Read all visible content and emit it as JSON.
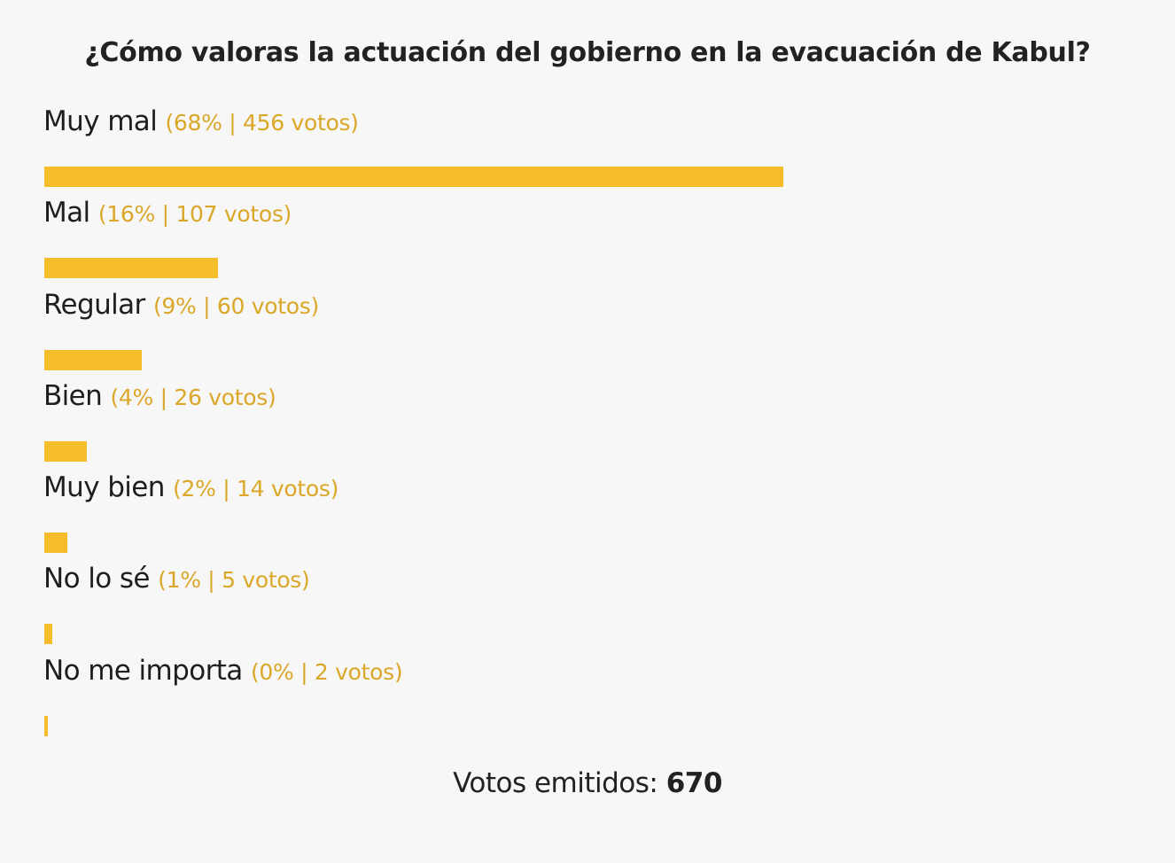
{
  "poll": {
    "title": "¿Cómo valoras la actuación del gobierno en la evacuación de Kabul?",
    "total_label": "Votos emitidos:",
    "total_value": "670",
    "bar_color": "#f5bd2a",
    "stats_color": "#dba728"
  },
  "options": [
    {
      "label": "Muy mal",
      "stats": "(68% | 456 votos)"
    },
    {
      "label": "Mal",
      "stats": "(16% | 107 votos)"
    },
    {
      "label": "Regular",
      "stats": "(9% | 60 votos)"
    },
    {
      "label": "Bien",
      "stats": "(4% | 26 votos)"
    },
    {
      "label": "Muy bien",
      "stats": "(2% | 14 votos)"
    },
    {
      "label": "No lo sé",
      "stats": "(1% | 5 votos)"
    },
    {
      "label": "No me importa",
      "stats": "(0% | 2 votos)"
    }
  ],
  "chart_data": {
    "type": "bar",
    "orientation": "horizontal",
    "title": "¿Cómo valoras la actuación del gobierno en la evacuación de Kabul?",
    "categories": [
      "Muy mal",
      "Mal",
      "Regular",
      "Bien",
      "Muy bien",
      "No lo sé",
      "No me importa"
    ],
    "values": [
      456,
      107,
      60,
      26,
      14,
      5,
      2
    ],
    "percentages": [
      68,
      16,
      9,
      4,
      2,
      1,
      0
    ],
    "total": 670,
    "xlim": [
      0,
      670
    ],
    "grid": false,
    "legend": "none"
  }
}
